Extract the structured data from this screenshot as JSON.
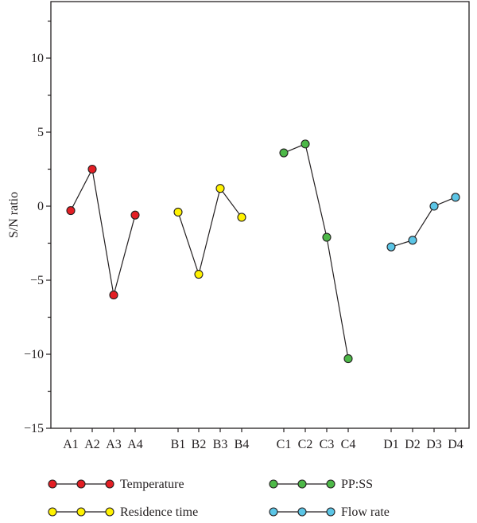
{
  "chart_data": {
    "type": "line",
    "title": "",
    "xlabel": "",
    "ylabel": "S/N ratio",
    "ylim": [
      -15,
      13.5
    ],
    "yticks": [
      -15,
      -10,
      -5,
      0,
      5,
      10
    ],
    "ytick_labels": [
      "−15",
      "−10",
      "−5",
      "0",
      "5",
      "10"
    ],
    "grid": false,
    "legend_position": "bottom",
    "series": [
      {
        "name": "Temperature",
        "color": "#e31e24",
        "categories": [
          "A1",
          "A2",
          "A3",
          "A4"
        ],
        "values": [
          -0.3,
          2.5,
          -6.0,
          -0.6
        ]
      },
      {
        "name": "Residence time",
        "color": "#fff200",
        "categories": [
          "B1",
          "B2",
          "B3",
          "B4"
        ],
        "values": [
          -0.4,
          -4.6,
          1.2,
          -0.75
        ]
      },
      {
        "name": "PP:SS",
        "color": "#4db848",
        "categories": [
          "C1",
          "C2",
          "C3",
          "C4"
        ],
        "values": [
          3.6,
          4.2,
          -2.1,
          -10.3
        ]
      },
      {
        "name": "Flow rate",
        "color": "#5bc5e6",
        "categories": [
          "D1",
          "D2",
          "D3",
          "D4"
        ],
        "values": [
          -2.75,
          -2.3,
          0.0,
          0.6
        ]
      }
    ]
  }
}
